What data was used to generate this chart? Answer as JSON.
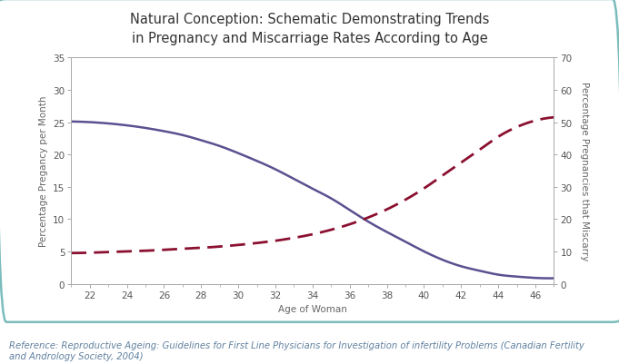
{
  "title_line1": "Natural Conception: Schematic Demonstrating Trends",
  "title_line2": "in Pregnancy and Miscarriage Rates According to Age",
  "xlabel": "Age of Woman",
  "ylabel_left": "Percentage Pregancy per Month",
  "ylabel_right": "Percentage Pregnancies that Miscarry",
  "x_min": 21,
  "x_max": 47,
  "y_left_min": 0,
  "y_left_max": 35,
  "y_right_min": 0,
  "y_right_max": 70,
  "x_ticks": [
    22,
    24,
    26,
    28,
    30,
    32,
    34,
    36,
    38,
    40,
    42,
    44,
    46
  ],
  "y_left_ticks": [
    0,
    5,
    10,
    15,
    20,
    25,
    30,
    35
  ],
  "y_right_ticks": [
    0,
    10,
    20,
    30,
    40,
    50,
    60,
    70
  ],
  "pregnancy_color": "#5B5090",
  "miscarriage_color": "#8B1030",
  "background_color": "#FFFFFF",
  "border_color": "#7BBCBC",
  "reference_color": "#6080A0",
  "reference_text": "Reference: Reproductive Ageing: Guidelines for First Line Physicians for Investigation of infertility Problems (Canadian Fertility\nand Andrology Society, 2004)",
  "pregnancy_x": [
    21,
    22,
    23,
    24,
    25,
    26,
    27,
    28,
    29,
    30,
    31,
    32,
    33,
    34,
    35,
    36,
    37,
    38,
    39,
    40,
    41,
    42,
    43,
    44,
    45,
    46,
    47
  ],
  "pregnancy_y": [
    25.1,
    25.0,
    24.8,
    24.5,
    24.1,
    23.6,
    23.0,
    22.2,
    21.3,
    20.2,
    19.0,
    17.7,
    16.2,
    14.7,
    13.2,
    11.4,
    9.6,
    8.0,
    6.5,
    5.0,
    3.7,
    2.7,
    2.0,
    1.4,
    1.1,
    0.9,
    0.85
  ],
  "miscarriage_x": [
    21,
    22,
    23,
    24,
    25,
    26,
    27,
    28,
    29,
    30,
    31,
    32,
    33,
    34,
    35,
    36,
    37,
    38,
    39,
    40,
    41,
    42,
    43,
    44,
    45,
    46,
    47
  ],
  "miscarriage_y": [
    9.5,
    9.6,
    9.8,
    10.0,
    10.2,
    10.5,
    10.8,
    11.1,
    11.5,
    12.0,
    12.6,
    13.3,
    14.2,
    15.3,
    16.7,
    18.4,
    20.5,
    23.0,
    26.0,
    29.5,
    33.5,
    37.5,
    41.5,
    45.5,
    48.5,
    50.5,
    51.5
  ],
  "title_fontsize": 10.5,
  "axis_label_fontsize": 7.5,
  "tick_fontsize": 7.5,
  "ref_fontsize": 7.2
}
